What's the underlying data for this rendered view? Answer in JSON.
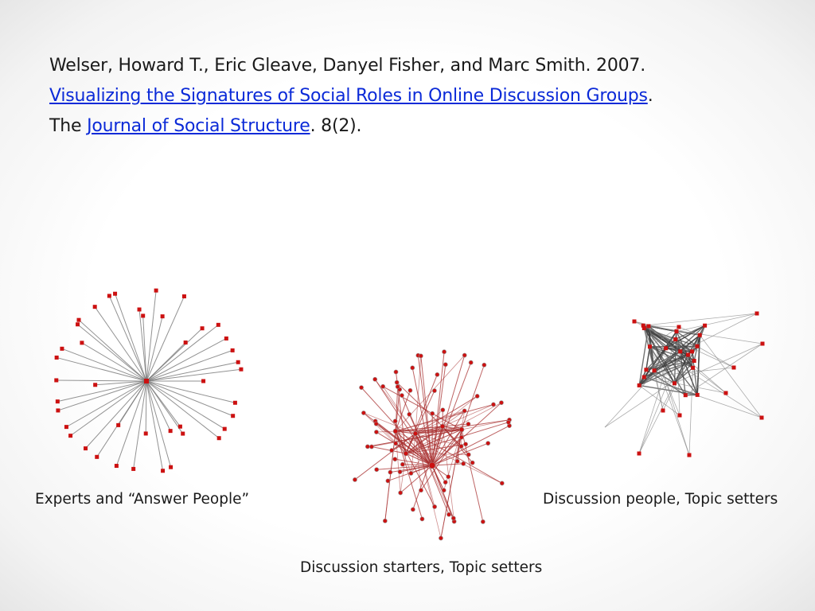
{
  "citation": {
    "authors": "Welser, Howard T., Eric Gleave, Danyel Fisher, and Marc Smith. 2007.",
    "title_link": "Visualizing the Signatures of Social Roles in Online Discussion Groups",
    "after_title": ".",
    "journal_prefix": "The ",
    "journal_link": "Journal of Social Structure",
    "volume": ". 8(2)."
  },
  "captions": {
    "left": "Experts and “Answer People”",
    "center": "Discussion starters, Topic setters",
    "right": "Discussion people, Topic setters"
  },
  "colors": {
    "node": "#cc1111",
    "edge_left": "#777777",
    "edge_center": "#a83030",
    "edge_right": "#444444",
    "link": "#0b2ad8"
  }
}
